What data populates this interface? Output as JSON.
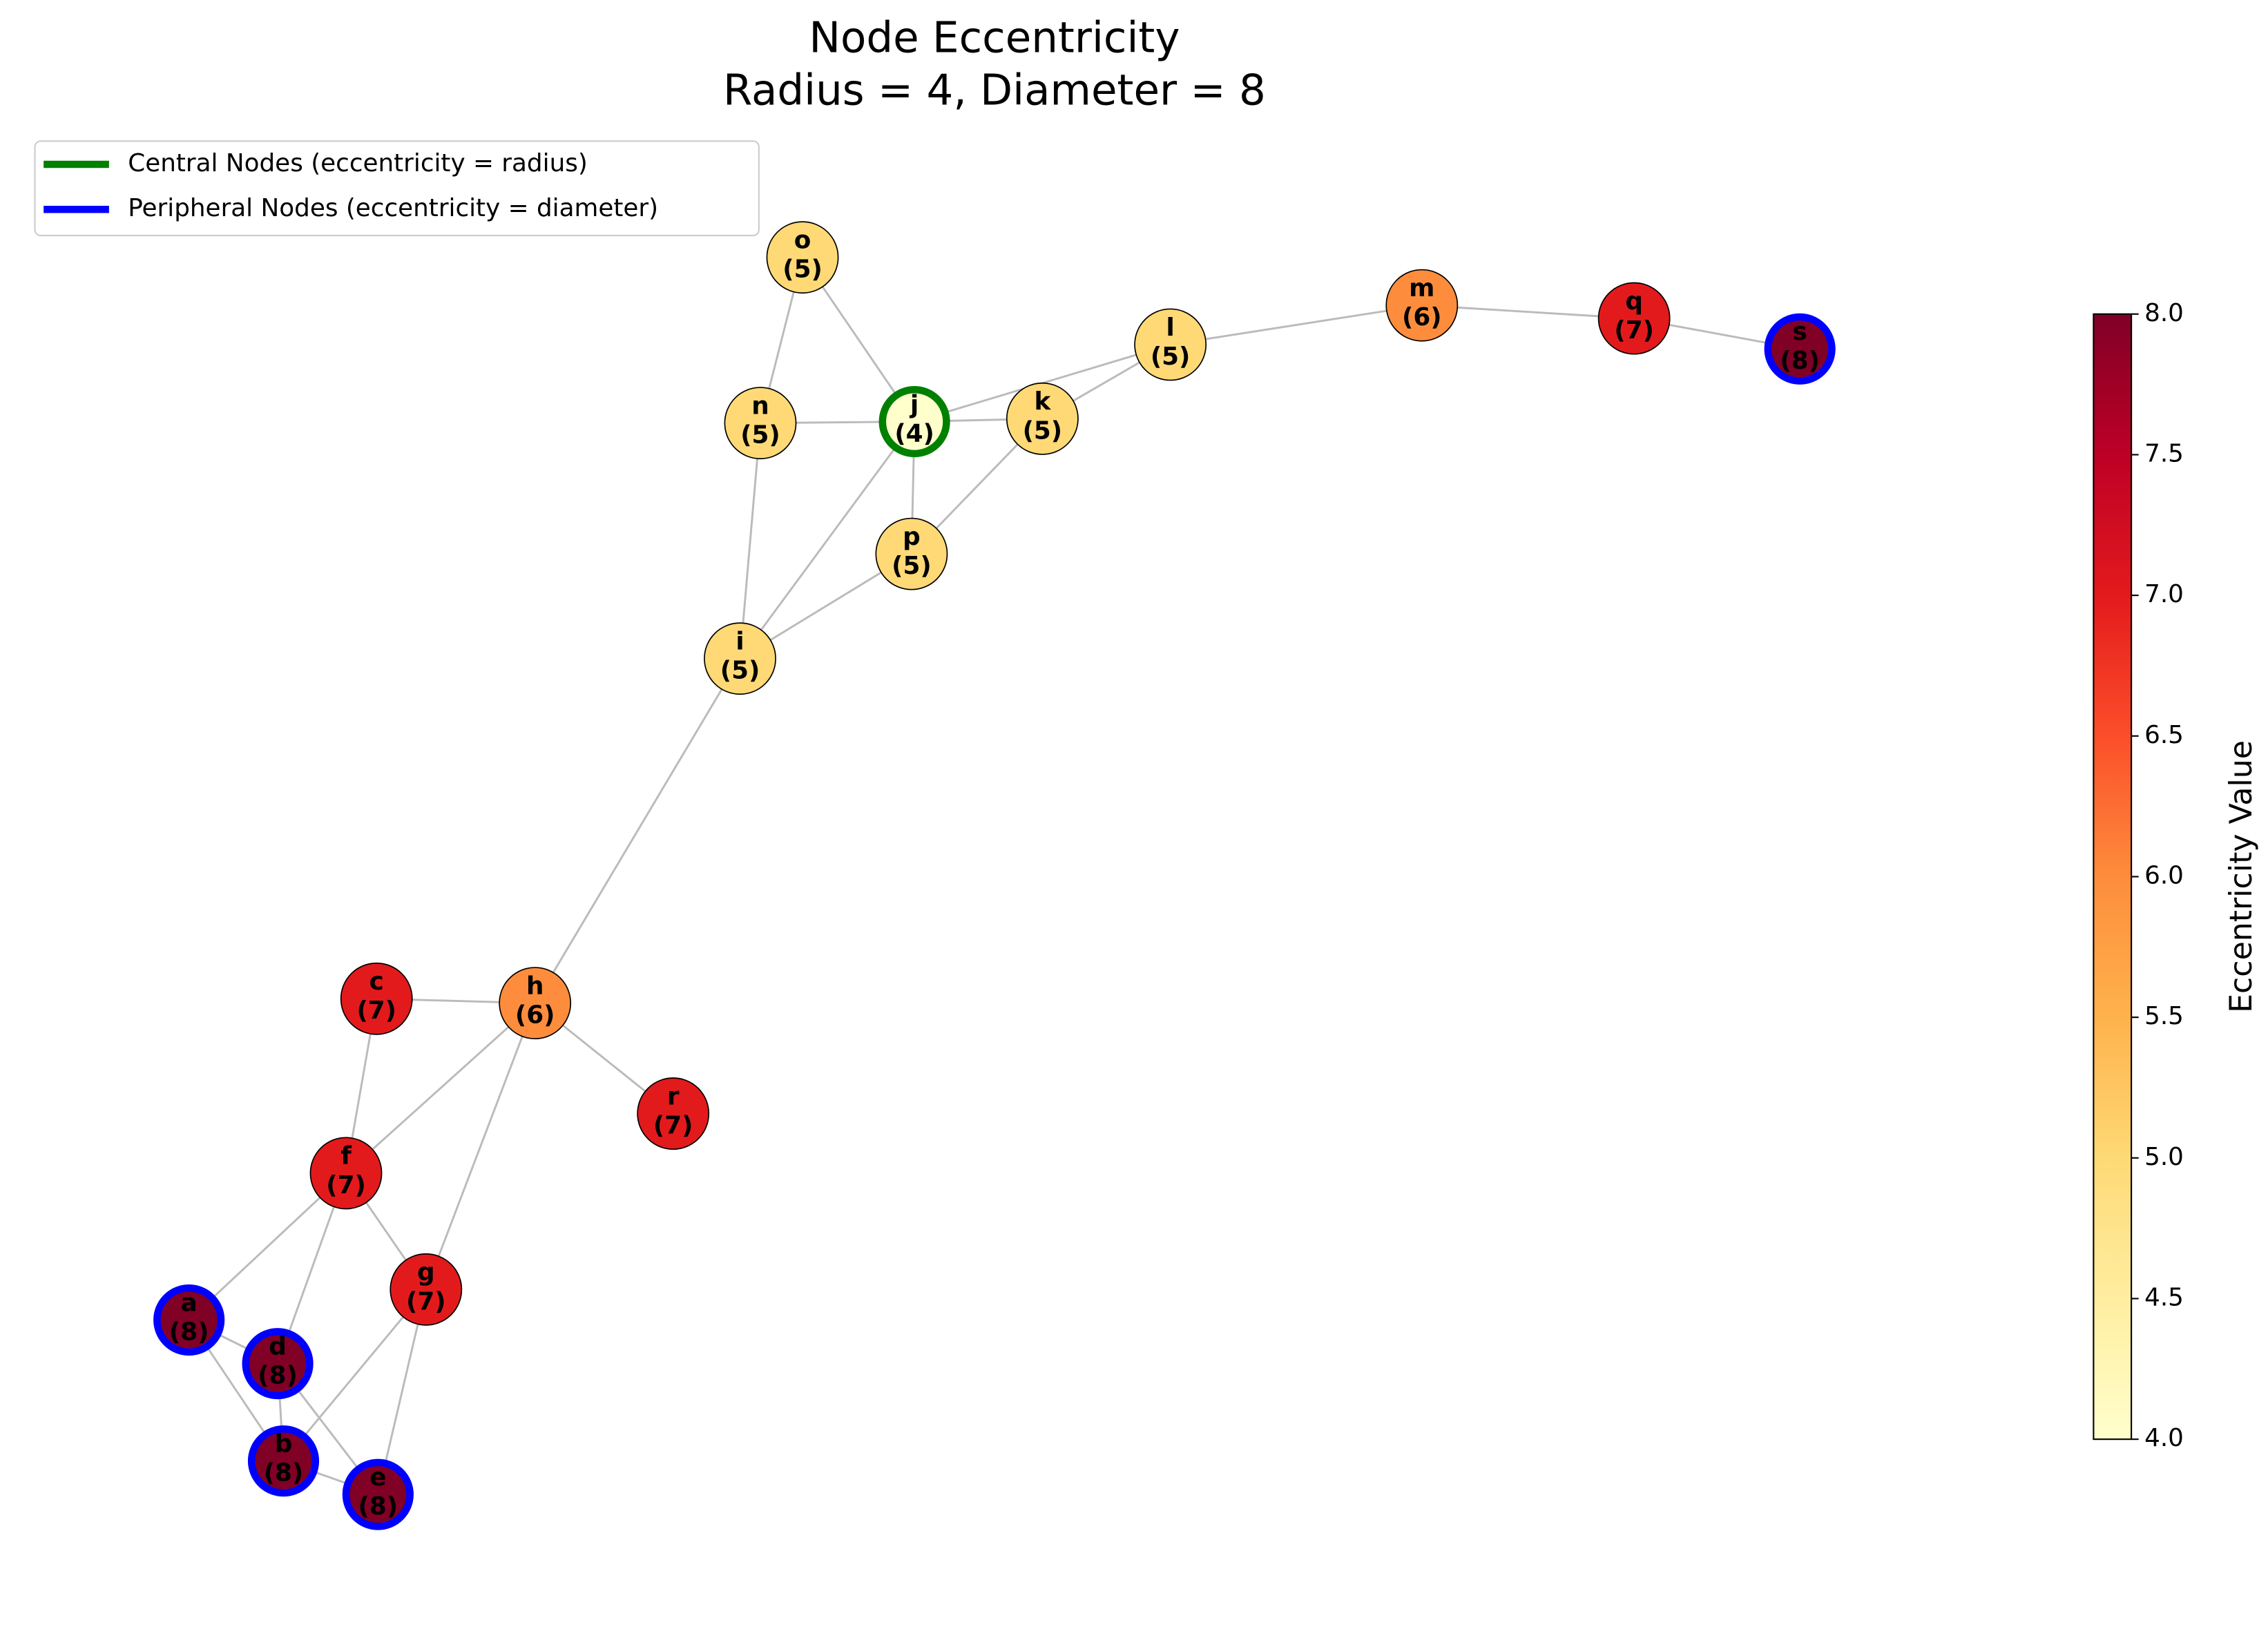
{
  "title_lines": [
    "Node Eccentricity",
    "Radius = 4, Diameter = 8"
  ],
  "legend": [
    "Central Nodes (eccentricity = radius)",
    "Peripheral Nodes (eccentricity = diameter)"
  ],
  "legend_colors": [
    "#008000",
    "#0000ff"
  ],
  "nodes": [
    {
      "id": "o",
      "eccentricity": 5,
      "eccentricity_label": "(5)"
    },
    {
      "id": "n",
      "eccentricity": 5,
      "eccentricity_label": "(5)"
    },
    {
      "id": "j",
      "eccentricity": 4,
      "eccentricity_label": "(4)"
    },
    {
      "id": "k",
      "eccentricity": 5,
      "eccentricity_label": "(5)"
    },
    {
      "id": "l",
      "eccentricity": 5,
      "eccentricity_label": "(5)"
    },
    {
      "id": "m",
      "eccentricity": 6,
      "eccentricity_label": "(6)"
    },
    {
      "id": "q",
      "eccentricity": 7,
      "eccentricity_label": "(7)"
    },
    {
      "id": "s",
      "eccentricity": 8,
      "eccentricity_label": "(8)"
    },
    {
      "id": "p",
      "eccentricity": 5,
      "eccentricity_label": "(5)"
    },
    {
      "id": "i",
      "eccentricity": 5,
      "eccentricity_label": "(5)"
    },
    {
      "id": "h",
      "eccentricity": 6,
      "eccentricity_label": "(6)"
    },
    {
      "id": "c",
      "eccentricity": 7,
      "eccentricity_label": "(7)"
    },
    {
      "id": "r",
      "eccentricity": 7,
      "eccentricity_label": "(7)"
    },
    {
      "id": "f",
      "eccentricity": 7,
      "eccentricity_label": "(7)"
    },
    {
      "id": "g",
      "eccentricity": 7,
      "eccentricity_label": "(7)"
    },
    {
      "id": "a",
      "eccentricity": 8,
      "eccentricity_label": "(8)"
    },
    {
      "id": "d",
      "eccentricity": 8,
      "eccentricity_label": "(8)"
    },
    {
      "id": "b",
      "eccentricity": 8,
      "eccentricity_label": "(8)"
    },
    {
      "id": "e",
      "eccentricity": 8,
      "eccentricity_label": "(8)"
    }
  ],
  "edges": [
    [
      "o",
      "n"
    ],
    [
      "o",
      "j"
    ],
    [
      "n",
      "j"
    ],
    [
      "n",
      "i"
    ],
    [
      "j",
      "k"
    ],
    [
      "j",
      "l"
    ],
    [
      "j",
      "p"
    ],
    [
      "j",
      "i"
    ],
    [
      "k",
      "l"
    ],
    [
      "k",
      "p"
    ],
    [
      "p",
      "i"
    ],
    [
      "l",
      "m"
    ],
    [
      "m",
      "q"
    ],
    [
      "q",
      "s"
    ],
    [
      "i",
      "h"
    ],
    [
      "h",
      "c"
    ],
    [
      "h",
      "f"
    ],
    [
      "h",
      "r"
    ],
    [
      "h",
      "g"
    ],
    [
      "c",
      "f"
    ],
    [
      "f",
      "a"
    ],
    [
      "f",
      "d"
    ],
    [
      "f",
      "g"
    ],
    [
      "a",
      "d"
    ],
    [
      "a",
      "b"
    ],
    [
      "d",
      "b"
    ],
    [
      "d",
      "e"
    ],
    [
      "g",
      "b"
    ],
    [
      "g",
      "e"
    ],
    [
      "b",
      "e"
    ]
  ],
  "colorbar": {
    "label": "Eccentricity Value",
    "lim": [
      4,
      8
    ],
    "ticks": [
      {
        "value": 4,
        "label": "4.0"
      },
      {
        "value": 4.5,
        "label": "4.5"
      },
      {
        "value": 5,
        "label": "5.0"
      },
      {
        "value": 5.5,
        "label": "5.5"
      },
      {
        "value": 6,
        "label": "6.0"
      },
      {
        "value": 6.5,
        "label": "6.5"
      },
      {
        "value": 7,
        "label": "7.0"
      },
      {
        "value": 7.5,
        "label": "7.5"
      },
      {
        "value": 8,
        "label": "8.0"
      }
    ],
    "colormap": [
      "#ffffcc",
      "#ffeda0",
      "#fed976",
      "#feb24c",
      "#fd8d3c",
      "#fc4e2a",
      "#e31a1c",
      "#bd0026",
      "#800026"
    ]
  }
}
